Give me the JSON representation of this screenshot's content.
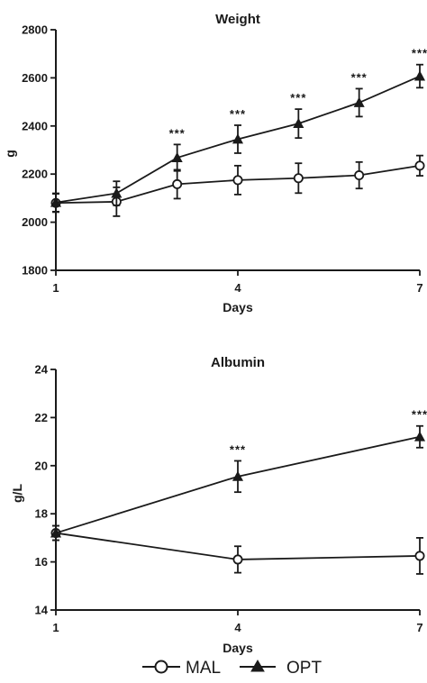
{
  "colors": {
    "line": "#1a1a1a",
    "background": "#ffffff",
    "marker_fill": "#ffffff"
  },
  "legend": {
    "placement": "bottom-center",
    "items": [
      {
        "label": "MAL",
        "marker": "circle-open"
      },
      {
        "label": "OPT",
        "marker": "triangle-filled"
      }
    ]
  },
  "chart_data": [
    {
      "type": "line",
      "title": "Weight",
      "xlabel": "Days",
      "ylabel": "g",
      "xlim": [
        1,
        7
      ],
      "ylim": [
        1800,
        2800
      ],
      "xticks": [
        1,
        4,
        7
      ],
      "yticks": [
        1800,
        2000,
        2200,
        2400,
        2600,
        2800
      ],
      "grid": false,
      "series": [
        {
          "name": "MAL",
          "marker": "circle-open",
          "x": [
            1,
            2,
            3,
            4,
            5,
            6,
            7
          ],
          "y": [
            2080,
            2085,
            2158,
            2175,
            2183,
            2195,
            2235
          ],
          "err": [
            38,
            60,
            60,
            60,
            62,
            55,
            42
          ]
        },
        {
          "name": "OPT",
          "marker": "triangle-filled",
          "x": [
            1,
            2,
            3,
            4,
            5,
            6,
            7
          ],
          "y": [
            2082,
            2120,
            2268,
            2345,
            2410,
            2497,
            2607
          ],
          "err": [
            38,
            50,
            55,
            58,
            60,
            58,
            48
          ]
        }
      ],
      "annotations": [
        {
          "x": 3,
          "text": "***"
        },
        {
          "x": 4,
          "text": "***"
        },
        {
          "x": 5,
          "text": "***"
        },
        {
          "x": 6,
          "text": "***"
        },
        {
          "x": 7,
          "text": "***"
        }
      ]
    },
    {
      "type": "line",
      "title": "Albumin",
      "xlabel": "Days",
      "ylabel": "g/L",
      "xlim": [
        1,
        7
      ],
      "ylim": [
        14,
        24
      ],
      "xticks": [
        1,
        4,
        7
      ],
      "yticks": [
        14,
        16,
        18,
        20,
        22,
        24
      ],
      "grid": false,
      "series": [
        {
          "name": "MAL",
          "marker": "circle-open",
          "x": [
            1,
            4,
            7
          ],
          "y": [
            17.2,
            16.1,
            16.25
          ],
          "err": [
            0.3,
            0.55,
            0.75
          ]
        },
        {
          "name": "OPT",
          "marker": "triangle-filled",
          "x": [
            1,
            4,
            7
          ],
          "y": [
            17.2,
            19.55,
            21.2
          ],
          "err": [
            0.3,
            0.65,
            0.45
          ]
        }
      ],
      "annotations": [
        {
          "x": 4,
          "text": "***"
        },
        {
          "x": 7,
          "text": "***"
        }
      ]
    }
  ]
}
